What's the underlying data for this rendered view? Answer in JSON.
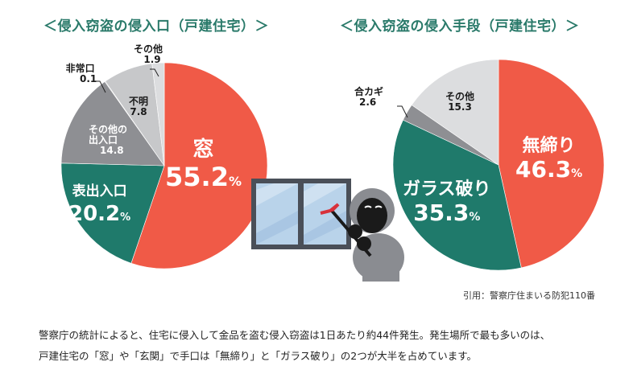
{
  "titles": {
    "left": "＜侵入窃盗の侵入口（戸建住宅）＞",
    "right": "＜侵入窃盗の侵入手段（戸建住宅）＞"
  },
  "labels": {
    "left": {
      "window_name": "窓",
      "window_val": "55.2",
      "front_name": "表出入口",
      "front_val": "20.2",
      "pct": "%",
      "other_exit_l1": "その他の",
      "other_exit_l2": "出入口",
      "other_exit_val": "14.8",
      "unknown_name": "不明",
      "unknown_val": "7.8",
      "emergency_name": "非常口",
      "emergency_val": "0.1",
      "other_name": "その他",
      "other_val": "1.9"
    },
    "right": {
      "unlocked_name": "無締り",
      "unlocked_val": "46.3",
      "glass_name": "ガラス破り",
      "glass_val": "35.3",
      "pct": "%",
      "dupkey_name": "合カギ",
      "dupkey_val": "2.6",
      "other_name": "その他",
      "other_val": "15.3"
    }
  },
  "source": "引用：警察庁住まいる防犯110番",
  "description": {
    "line1": "警察庁の統計によると、住宅に侵入して金品を盗む侵入窃盗は1日あたり約44件発生。発生場所で最も多いのは、",
    "line2": "戸建住宅の「窓」や「玄関」で手口は「無締り」と「ガラス破り」の2つが大半を占めています。"
  },
  "colors": {
    "title": "#2a7a6a",
    "red": "#f05a47",
    "teal": "#1f7a6b",
    "gray_dark": "#8e8f93",
    "gray_mid": "#c7c8ca",
    "gray_light": "#dcdddf"
  },
  "chart_data": [
    {
      "type": "pie",
      "title": "＜侵入窃盗の侵入口（戸建住宅）＞",
      "unit": "%",
      "start": "12 o'clock, clockwise",
      "categories": [
        "窓",
        "表出入口",
        "その他の出入口",
        "非常口",
        "不明",
        "その他"
      ],
      "values": [
        55.2,
        20.2,
        14.8,
        0.1,
        7.8,
        1.9
      ],
      "colors": [
        "#f05a47",
        "#1f7a6b",
        "#8e8f93",
        "#8e8f93",
        "#c7c8ca",
        "#dcdddf"
      ]
    },
    {
      "type": "pie",
      "title": "＜侵入窃盗の侵入手段（戸建住宅）＞",
      "unit": "%",
      "start": "12 o'clock, clockwise",
      "categories": [
        "無締り",
        "ガラス破り",
        "合カギ",
        "その他"
      ],
      "values": [
        46.3,
        35.3,
        2.6,
        15.3
      ],
      "colors": [
        "#f05a47",
        "#1f7a6b",
        "#8e8f93",
        "#dcdddf"
      ]
    }
  ]
}
